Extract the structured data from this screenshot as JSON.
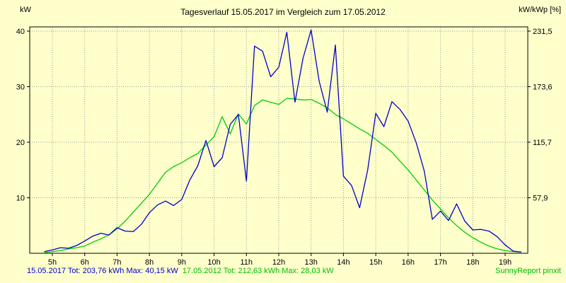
{
  "title": "Tagesverlauf 15.05.2017 im Vergleich zum 17.05.2012",
  "footer": {
    "series1_summary": "15.05.2017 Tot: 203,76 kWh Max: 40,15 kW",
    "series2_summary": "17.05.2012 Tot: 212,63 kWh Max: 28,03 kW",
    "brand": "SunnyReport pinxit"
  },
  "chart_data": {
    "type": "line",
    "title": "Tagesverlauf 15.05.2017 im Vergleich zum 17.05.2012",
    "left_axis_label": "kW",
    "right_axis_label": "kW/kWp [%]",
    "xlim": [
      4.3,
      19.7
    ],
    "ylim": [
      0,
      40
    ],
    "grid": true,
    "legend_position": "bottom-text",
    "colors": {
      "background": "#FFFFCC",
      "grid": "#999999",
      "axis": "#000000",
      "series_2017": "#0000CC",
      "series_2012": "#00CC00"
    },
    "x_ticks": [
      [
        5,
        "5h"
      ],
      [
        6,
        "6h"
      ],
      [
        7,
        "7h"
      ],
      [
        8,
        "8h"
      ],
      [
        9,
        "9h"
      ],
      [
        10,
        "10h"
      ],
      [
        11,
        "11h"
      ],
      [
        12,
        "12h"
      ],
      [
        13,
        "13h"
      ],
      [
        14,
        "14h"
      ],
      [
        15,
        "15h"
      ],
      [
        16,
        "16h"
      ],
      [
        17,
        "17h"
      ],
      [
        18,
        "18h"
      ],
      [
        19,
        "19h"
      ]
    ],
    "y_ticks_left": [
      [
        10,
        "10"
      ],
      [
        20,
        "20"
      ],
      [
        30,
        "30"
      ],
      [
        40,
        "40"
      ]
    ],
    "y_ticks_right": [
      [
        10,
        "57,9"
      ],
      [
        20,
        "115,7"
      ],
      [
        30,
        "173,6"
      ],
      [
        40,
        "231,5"
      ]
    ],
    "x": [
      4.75,
      5.0,
      5.25,
      5.5,
      5.75,
      6.0,
      6.25,
      6.5,
      6.75,
      7.0,
      7.25,
      7.5,
      7.75,
      8.0,
      8.25,
      8.5,
      8.75,
      9.0,
      9.25,
      9.5,
      9.75,
      10.0,
      10.25,
      10.5,
      10.75,
      11.0,
      11.25,
      11.5,
      11.75,
      12.0,
      12.25,
      12.5,
      12.75,
      13.0,
      13.25,
      13.5,
      13.75,
      14.0,
      14.25,
      14.5,
      14.75,
      15.0,
      15.25,
      15.5,
      15.75,
      16.0,
      16.25,
      16.5,
      16.75,
      17.0,
      17.25,
      17.5,
      17.75,
      18.0,
      18.25,
      18.5,
      18.75,
      19.0,
      19.25,
      19.5
    ],
    "series": [
      {
        "name": "15.05.2017",
        "color": "#0000CC",
        "total_kwh": "203,76",
        "max_kw": "40,15",
        "values": [
          0.3,
          0.6,
          1.0,
          0.9,
          1.4,
          2.2,
          3.1,
          3.6,
          3.3,
          4.6,
          4.0,
          3.9,
          5.2,
          7.3,
          8.7,
          9.4,
          8.6,
          9.7,
          13.2,
          15.8,
          20.3,
          15.6,
          17.2,
          23.2,
          25.0,
          13.0,
          37.3,
          36.4,
          31.8,
          33.5,
          39.8,
          27.2,
          35.1,
          40.2,
          31.0,
          25.4,
          37.5,
          13.9,
          12.2,
          8.2,
          15.0,
          25.2,
          22.8,
          27.3,
          25.9,
          23.8,
          19.9,
          14.8,
          6.1,
          7.6,
          5.9,
          8.9,
          5.8,
          4.2,
          4.3,
          4.0,
          3.0,
          1.5,
          0.4,
          0.2
        ]
      },
      {
        "name": "17.05.2012",
        "color": "#00CC00",
        "total_kwh": "212,63",
        "max_kw": "28,03",
        "values": [
          0.1,
          0.3,
          0.5,
          0.8,
          1.0,
          1.3,
          2.0,
          2.6,
          3.3,
          4.4,
          5.8,
          7.4,
          9.0,
          10.6,
          12.6,
          14.6,
          15.6,
          16.3,
          17.2,
          18.0,
          19.5,
          21.0,
          24.6,
          21.5,
          25.1,
          23.3,
          26.6,
          27.6,
          27.2,
          26.8,
          27.9,
          27.8,
          27.6,
          27.7,
          27.0,
          26.2,
          25.0,
          24.2,
          23.3,
          22.4,
          21.6,
          20.5,
          19.4,
          18.2,
          16.6,
          15.0,
          13.2,
          11.4,
          9.6,
          8.0,
          6.4,
          5.0,
          3.8,
          2.8,
          2.0,
          1.3,
          0.8,
          0.5,
          0.3,
          0.2
        ]
      }
    ]
  }
}
